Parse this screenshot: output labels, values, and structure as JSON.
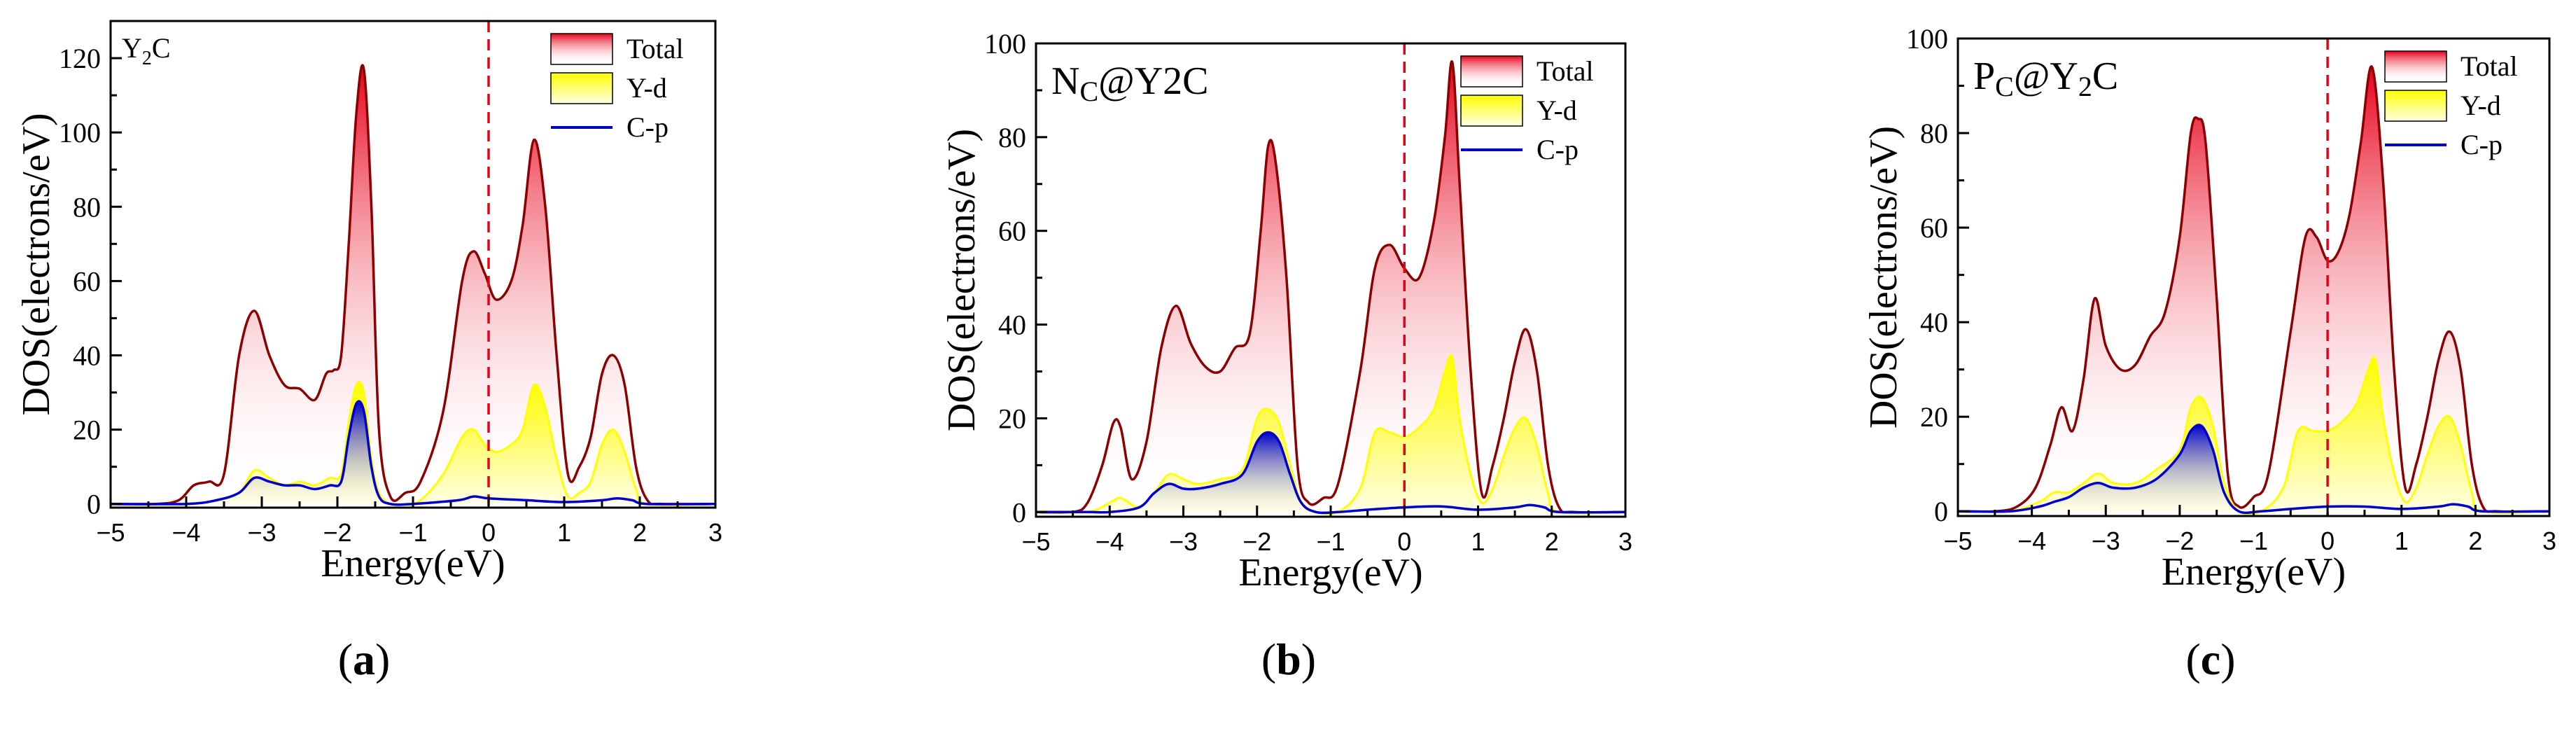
{
  "colors": {
    "total": "#8b0000",
    "totalFillTop": "#e8001a",
    "yd": "#ffff00",
    "cp": "#0000cc",
    "fermi": "#e8001a"
  },
  "chart_data": [
    {
      "type": "area",
      "panel_label": "a",
      "title": "Y2C",
      "title_main": "Y",
      "title_sub": "2",
      "title_tail": "C",
      "xlabel": "Energy(eV)",
      "ylabel": "DOS(electrons/eV)",
      "xlim": [
        -5,
        3
      ],
      "ylim": [
        -1,
        130
      ],
      "xticks": [
        -5,
        -4,
        -3,
        -2,
        -1,
        0,
        1,
        2,
        3
      ],
      "yticks": [
        0,
        20,
        40,
        60,
        80,
        100,
        120
      ],
      "legend": [
        "Total",
        "Y-d",
        "C-p"
      ],
      "fermi_level": 0,
      "series": [
        {
          "name": "Total",
          "x": [
            -5,
            -4.4,
            -4.1,
            -3.9,
            -3.7,
            -3.5,
            -3.3,
            -3.1,
            -2.9,
            -2.7,
            -2.5,
            -2.3,
            -2.15,
            -2.05,
            -1.95,
            -1.85,
            -1.75,
            -1.65,
            -1.55,
            -1.45,
            -1.3,
            -1.1,
            -0.9,
            -0.6,
            -0.35,
            -0.2,
            -0.05,
            0.1,
            0.3,
            0.45,
            0.6,
            0.75,
            0.9,
            1.05,
            1.2,
            1.35,
            1.5,
            1.65,
            1.8,
            1.95,
            2.1,
            2.3,
            3
          ],
          "y": [
            0,
            0,
            1,
            5,
            6,
            8,
            40,
            52,
            40,
            32,
            31,
            28,
            35,
            36,
            40,
            70,
            105,
            117,
            80,
            20,
            2,
            3,
            6,
            25,
            60,
            68,
            62,
            55,
            60,
            75,
            98,
            80,
            40,
            8,
            10,
            18,
            35,
            40,
            32,
            10,
            1,
            0,
            0
          ]
        },
        {
          "name": "Y-d",
          "x": [
            -5,
            -4.0,
            -3.6,
            -3.3,
            -3.1,
            -2.9,
            -2.7,
            -2.5,
            -2.3,
            -2.1,
            -1.95,
            -1.85,
            -1.75,
            -1.65,
            -1.55,
            -1.45,
            -1.3,
            -1.1,
            -0.9,
            -0.6,
            -0.35,
            -0.2,
            -0.05,
            0.1,
            0.3,
            0.45,
            0.6,
            0.75,
            0.9,
            1.05,
            1.2,
            1.35,
            1.5,
            1.65,
            1.8,
            1.95,
            2.1,
            3
          ],
          "y": [
            0,
            0,
            1,
            3,
            9,
            7,
            5,
            6,
            5,
            7,
            8,
            22,
            32,
            30,
            12,
            3,
            0,
            0,
            1,
            8,
            18,
            20,
            16,
            14,
            16,
            20,
            32,
            26,
            12,
            2,
            3,
            6,
            16,
            20,
            14,
            4,
            0,
            0
          ]
        },
        {
          "name": "C-p",
          "x": [
            -5,
            -4.0,
            -3.6,
            -3.3,
            -3.1,
            -2.9,
            -2.7,
            -2.5,
            -2.3,
            -2.1,
            -1.95,
            -1.85,
            -1.75,
            -1.65,
            -1.55,
            -1.45,
            -1.3,
            -1.0,
            -0.4,
            -0.2,
            0,
            0.5,
            1.0,
            1.5,
            1.7,
            1.9,
            2.1,
            3
          ],
          "y": [
            0,
            0,
            1,
            3,
            7,
            6,
            5,
            5,
            4,
            5,
            6,
            18,
            27,
            25,
            10,
            2,
            0,
            0,
            1,
            2,
            1.5,
            1,
            0.5,
            1,
            1.5,
            1,
            0,
            0
          ]
        }
      ]
    },
    {
      "type": "area",
      "panel_label": "b",
      "title": "Nc@Y2C",
      "title_main": "N",
      "title_sub": "C",
      "title_tail": "@Y2C",
      "xlabel": "Energy(eV)",
      "ylabel": "DOS(electrons/eV)",
      "xlim": [
        -5,
        3
      ],
      "ylim": [
        -1,
        100
      ],
      "xticks": [
        -5,
        -4,
        -3,
        -2,
        -1,
        0,
        1,
        2,
        3
      ],
      "yticks": [
        0,
        20,
        40,
        60,
        80,
        100
      ],
      "legend": [
        "Total",
        "Y-d",
        "C-p"
      ],
      "fermi_level": 0,
      "series": [
        {
          "name": "Total",
          "x": [
            -5,
            -4.5,
            -4.3,
            -4.1,
            -3.95,
            -3.85,
            -3.7,
            -3.5,
            -3.3,
            -3.1,
            -2.9,
            -2.7,
            -2.5,
            -2.3,
            -2.1,
            -1.95,
            -1.85,
            -1.75,
            -1.6,
            -1.45,
            -1.3,
            -1.1,
            -0.9,
            -0.6,
            -0.4,
            -0.2,
            0,
            0.2,
            0.4,
            0.55,
            0.65,
            0.75,
            0.9,
            1.05,
            1.2,
            1.35,
            1.5,
            1.65,
            1.8,
            1.95,
            2.1,
            2.3,
            3
          ],
          "y": [
            0,
            0,
            2,
            10,
            19,
            18,
            7,
            15,
            35,
            44,
            36,
            31,
            30,
            35,
            38,
            60,
            78,
            75,
            50,
            10,
            2,
            3,
            6,
            30,
            52,
            57,
            52,
            50,
            62,
            80,
            96,
            70,
            30,
            4,
            10,
            20,
            32,
            39,
            30,
            10,
            1,
            0,
            0
          ]
        },
        {
          "name": "Y-d",
          "x": [
            -5,
            -4.3,
            -4.0,
            -3.85,
            -3.6,
            -3.4,
            -3.2,
            -3.0,
            -2.8,
            -2.5,
            -2.2,
            -2.0,
            -1.85,
            -1.7,
            -1.55,
            -1.4,
            -1.2,
            -0.9,
            -0.6,
            -0.4,
            -0.2,
            0,
            0.2,
            0.4,
            0.55,
            0.65,
            0.75,
            0.9,
            1.05,
            1.2,
            1.35,
            1.5,
            1.65,
            1.8,
            1.95,
            2.1,
            3
          ],
          "y": [
            0,
            0,
            2,
            3,
            1,
            4,
            8,
            7,
            6,
            7,
            9,
            20,
            22,
            19,
            10,
            2,
            0,
            0,
            5,
            17,
            17,
            16,
            18,
            22,
            30,
            33,
            20,
            8,
            2,
            5,
            12,
            18,
            20,
            14,
            4,
            0,
            0
          ]
        },
        {
          "name": "C-p",
          "x": [
            -5,
            -4.3,
            -4.0,
            -3.6,
            -3.4,
            -3.2,
            -3.0,
            -2.8,
            -2.5,
            -2.2,
            -2.0,
            -1.85,
            -1.7,
            -1.55,
            -1.4,
            -1.2,
            -0.9,
            -0.5,
            0,
            0.5,
            1.0,
            1.5,
            1.7,
            1.9,
            2.1,
            3
          ],
          "y": [
            0,
            0,
            0,
            1,
            4,
            6,
            5,
            5,
            6,
            8,
            15,
            17,
            15,
            8,
            2,
            0,
            0,
            0.5,
            1,
            1.2,
            0.5,
            1,
            1.5,
            1,
            0,
            0
          ]
        }
      ]
    },
    {
      "type": "area",
      "panel_label": "c",
      "title": "Pc@Y2C",
      "title_main": "P",
      "title_sub": "C",
      "title_tail": "@Y",
      "title_sub2": "2",
      "title_tail2": "C",
      "xlabel": "Energy(eV)",
      "ylabel": "DOS(electrons/eV)",
      "xlim": [
        -5,
        3
      ],
      "ylim": [
        -1,
        100
      ],
      "xticks": [
        -5,
        -4,
        -3,
        -2,
        -1,
        0,
        1,
        2,
        3
      ],
      "yticks": [
        0,
        20,
        40,
        60,
        80,
        100
      ],
      "legend": [
        "Total",
        "Y-d",
        "C-p"
      ],
      "fermi_level": 0,
      "series": [
        {
          "name": "Total",
          "x": [
            -5,
            -4.5,
            -4.2,
            -3.95,
            -3.75,
            -3.6,
            -3.45,
            -3.3,
            -3.15,
            -3.0,
            -2.8,
            -2.6,
            -2.4,
            -2.2,
            -2.0,
            -1.85,
            -1.75,
            -1.65,
            -1.5,
            -1.35,
            -1.2,
            -1.0,
            -0.8,
            -0.5,
            -0.3,
            -0.15,
            0,
            0.15,
            0.3,
            0.45,
            0.6,
            0.75,
            0.9,
            1.05,
            1.2,
            1.35,
            1.5,
            1.65,
            1.8,
            1.95,
            2.1,
            2.3,
            3
          ],
          "y": [
            0,
            0,
            1,
            5,
            14,
            22,
            17,
            28,
            45,
            35,
            30,
            31,
            37,
            42,
            58,
            80,
            83,
            78,
            45,
            8,
            1,
            3,
            8,
            38,
            58,
            58,
            53,
            55,
            63,
            78,
            94,
            70,
            30,
            5,
            10,
            20,
            32,
            38,
            30,
            10,
            1,
            0,
            0
          ]
        },
        {
          "name": "Y-d",
          "x": [
            -5,
            -4.3,
            -3.9,
            -3.7,
            -3.5,
            -3.3,
            -3.1,
            -2.9,
            -2.6,
            -2.3,
            -2.0,
            -1.85,
            -1.7,
            -1.55,
            -1.4,
            -1.2,
            -0.9,
            -0.6,
            -0.4,
            -0.2,
            0,
            0.2,
            0.4,
            0.55,
            0.65,
            0.75,
            0.9,
            1.05,
            1.2,
            1.35,
            1.5,
            1.65,
            1.8,
            1.95,
            2.1,
            3
          ],
          "y": [
            0,
            0,
            2,
            4,
            4,
            6,
            8,
            6,
            6,
            9,
            13,
            22,
            24,
            18,
            6,
            0,
            0,
            5,
            17,
            17,
            17,
            19,
            23,
            30,
            32,
            20,
            8,
            2,
            5,
            12,
            18,
            20,
            14,
            4,
            0,
            0
          ]
        },
        {
          "name": "C-p",
          "x": [
            -5,
            -4.3,
            -3.9,
            -3.7,
            -3.5,
            -3.3,
            -3.1,
            -2.9,
            -2.6,
            -2.3,
            -2.0,
            -1.85,
            -1.7,
            -1.55,
            -1.4,
            -1.2,
            -0.9,
            -0.5,
            0,
            0.5,
            1.0,
            1.5,
            1.7,
            1.9,
            2.1,
            3
          ],
          "y": [
            0,
            0,
            1,
            2,
            3,
            5,
            6,
            5,
            5,
            7,
            12,
            17,
            18,
            13,
            4,
            0,
            0,
            0.5,
            1,
            1,
            0.5,
            1,
            1.5,
            1,
            0,
            0
          ]
        }
      ]
    }
  ]
}
